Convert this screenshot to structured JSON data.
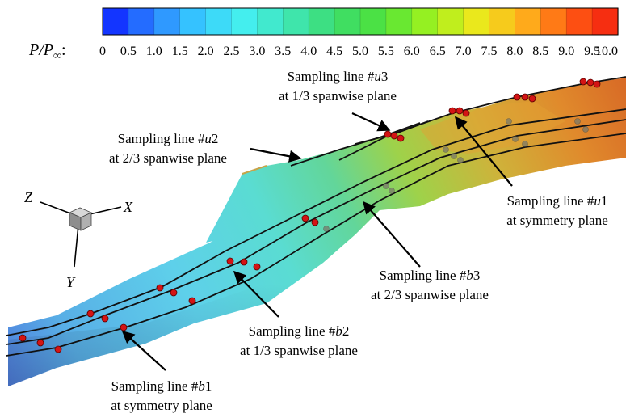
{
  "colorbar": {
    "label_main": "P/P",
    "label_sub": "∞",
    "label_colon": ":",
    "stops": [
      "#0a1aff",
      "#2a7dff",
      "#36c8ff",
      "#44eef0",
      "#3fe6b4",
      "#3cdc6c",
      "#4fe33a",
      "#9ff21e",
      "#ece81c",
      "#ffb01c",
      "#ff5a12",
      "#f21d10"
    ],
    "ticks": [
      "0",
      "0.5",
      "1.0",
      "1.5",
      "2.0",
      "2.5",
      "3.0",
      "3.5",
      "4.0",
      "4.5",
      "5.0",
      "5.5",
      "6.0",
      "6.5",
      "7.0",
      "7.5",
      "8.0",
      "8.5",
      "9.0",
      "9.5",
      "10.0"
    ]
  },
  "axes_triad": {
    "x_label": "X",
    "y_label": "Y",
    "z_label": "Z"
  },
  "annotations": {
    "u3": {
      "line1_prefix": "Sampling line #",
      "line1_var": "u",
      "line1_num": "3",
      "line2": "at 1/3 spanwise plane"
    },
    "u2": {
      "line1_prefix": "Sampling line #",
      "line1_var": "u",
      "line1_num": "2",
      "line2": "at 2/3 spanwise plane"
    },
    "u1": {
      "line1_prefix": "Sampling line #",
      "line1_var": "u",
      "line1_num": "1",
      "line2": "at symmetry plane"
    },
    "b3": {
      "line1_prefix": "Sampling line #",
      "line1_var": "b",
      "line1_num": "3",
      "line2": "at 2/3 spanwise plane"
    },
    "b2": {
      "line1_prefix": "Sampling line #",
      "line1_var": "b",
      "line1_num": "2",
      "line2": "at 1/3 spanwise plane"
    },
    "b1": {
      "line1_prefix": "Sampling line #",
      "line1_var": "b",
      "line1_num": "1",
      "line2": "at symmetry plane"
    }
  },
  "colors": {
    "marker_red": "#d41414",
    "arrow": "#000000",
    "line": "#111111"
  }
}
